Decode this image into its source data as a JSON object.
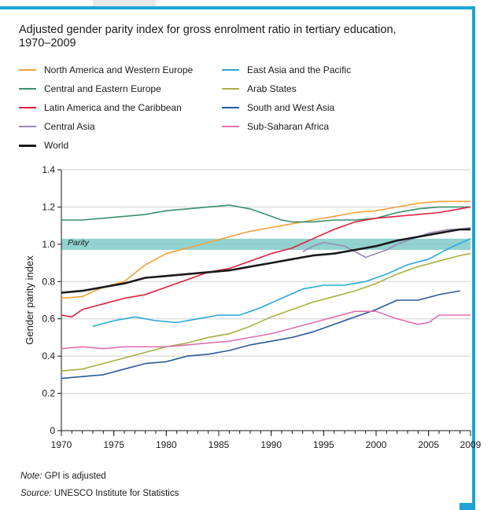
{
  "title_line1": "Adjusted gender parity index for gross enrolment ratio in tertiary education,",
  "title_line2": "1970–2009",
  "note_label": "Note:",
  "note_text": "GPI is adjusted",
  "source_label": "Source:",
  "source_text": "UNESCO Institute for Statistics",
  "chart_data": {
    "type": "line",
    "ylabel": "Gender parity index",
    "xlabel": "",
    "xlim": [
      1970,
      2009
    ],
    "ylim": [
      0,
      1.4
    ],
    "xticks": [
      "1970",
      "1975",
      "1980",
      "1985",
      "1990",
      "1995",
      "2000",
      "2005",
      "2009"
    ],
    "yticks": [
      "0",
      "0.2",
      "0.4",
      "0.6",
      "0.8",
      "1.0",
      "1.2",
      "1.4"
    ],
    "band": {
      "label": "Parity",
      "from": 0.97,
      "to": 1.03,
      "color": "#7fcbc7"
    },
    "grid": true,
    "legend_position": "top",
    "series": [
      {
        "name": "North America and Western Europe",
        "color": "#f5a03a",
        "x": [
          1970,
          1972,
          1974,
          1976,
          1978,
          1980,
          1982,
          1984,
          1986,
          1988,
          1990,
          1992,
          1994,
          1996,
          1998,
          2000,
          2002,
          2004,
          2006,
          2008,
          2009
        ],
        "y": [
          0.71,
          0.72,
          0.77,
          0.8,
          0.89,
          0.95,
          0.98,
          1.01,
          1.04,
          1.07,
          1.09,
          1.11,
          1.13,
          1.15,
          1.17,
          1.18,
          1.2,
          1.22,
          1.23,
          1.23,
          1.23
        ]
      },
      {
        "name": "Central and Eastern Europe",
        "color": "#3a8f6a",
        "x": [
          1970,
          1972,
          1974,
          1976,
          1978,
          1980,
          1982,
          1984,
          1986,
          1988,
          1990,
          1991,
          1992,
          1994,
          1996,
          1998,
          2000,
          2002,
          2004,
          2006,
          2008,
          2009
        ],
        "y": [
          1.13,
          1.13,
          1.14,
          1.15,
          1.16,
          1.18,
          1.19,
          1.2,
          1.21,
          1.19,
          1.15,
          1.13,
          1.12,
          1.12,
          1.13,
          1.13,
          1.14,
          1.17,
          1.19,
          1.2,
          1.2,
          1.2
        ]
      },
      {
        "name": "Latin America and the Caribbean",
        "color": "#e0203b",
        "x": [
          1970,
          1971,
          1972,
          1974,
          1976,
          1978,
          1980,
          1982,
          1984,
          1986,
          1988,
          1990,
          1992,
          1994,
          1996,
          1998,
          2000,
          2002,
          2004,
          2006,
          2008,
          2009
        ],
        "y": [
          0.62,
          0.61,
          0.65,
          0.68,
          0.71,
          0.73,
          0.77,
          0.81,
          0.85,
          0.87,
          0.91,
          0.95,
          0.98,
          1.03,
          1.08,
          1.12,
          1.14,
          1.15,
          1.16,
          1.17,
          1.19,
          1.2
        ]
      },
      {
        "name": "Central Asia",
        "color": "#9b8ab4",
        "x": [
          1993,
          1994,
          1995,
          1996,
          1997,
          1998,
          1999,
          2000,
          2001,
          2002,
          2003,
          2004,
          2005,
          2006,
          2007,
          2008,
          2009
        ],
        "y": [
          0.96,
          0.99,
          1.01,
          1.0,
          0.99,
          0.96,
          0.93,
          0.95,
          0.97,
          1.0,
          1.02,
          1.04,
          1.06,
          1.07,
          1.08,
          1.08,
          1.09
        ]
      },
      {
        "name": "World",
        "color": "#1a1a1a",
        "x": [
          1970,
          1972,
          1974,
          1976,
          1978,
          1980,
          1982,
          1984,
          1986,
          1988,
          1990,
          1992,
          1994,
          1996,
          1998,
          2000,
          2002,
          2004,
          2006,
          2008,
          2009
        ],
        "y": [
          0.74,
          0.75,
          0.77,
          0.79,
          0.82,
          0.83,
          0.84,
          0.85,
          0.86,
          0.88,
          0.9,
          0.92,
          0.94,
          0.95,
          0.97,
          0.99,
          1.02,
          1.04,
          1.06,
          1.08,
          1.08
        ]
      },
      {
        "name": "East Asia and the Pacific",
        "color": "#2aa8d8",
        "x": [
          1973,
          1975,
          1977,
          1979,
          1981,
          1983,
          1985,
          1987,
          1989,
          1991,
          1993,
          1995,
          1997,
          1999,
          2001,
          2003,
          2005,
          2007,
          2009
        ],
        "y": [
          0.56,
          0.59,
          0.61,
          0.59,
          0.58,
          0.6,
          0.62,
          0.62,
          0.66,
          0.71,
          0.76,
          0.78,
          0.78,
          0.8,
          0.84,
          0.89,
          0.92,
          0.98,
          1.03
        ]
      },
      {
        "name": "Arab States",
        "color": "#a8b040",
        "x": [
          1970,
          1972,
          1974,
          1976,
          1978,
          1980,
          1982,
          1984,
          1986,
          1988,
          1990,
          1992,
          1994,
          1996,
          1998,
          2000,
          2002,
          2004,
          2006,
          2008,
          2009
        ],
        "y": [
          0.32,
          0.33,
          0.36,
          0.39,
          0.42,
          0.45,
          0.47,
          0.5,
          0.52,
          0.56,
          0.61,
          0.65,
          0.69,
          0.72,
          0.75,
          0.79,
          0.84,
          0.88,
          0.91,
          0.94,
          0.95
        ]
      },
      {
        "name": "South and West Asia",
        "color": "#2a5a9a",
        "x": [
          1970,
          1972,
          1974,
          1976,
          1978,
          1980,
          1982,
          1984,
          1986,
          1988,
          1990,
          1992,
          1994,
          1996,
          1998,
          2000,
          2002,
          2004,
          2006,
          2008
        ],
        "y": [
          0.28,
          0.29,
          0.3,
          0.33,
          0.36,
          0.37,
          0.4,
          0.41,
          0.43,
          0.46,
          0.48,
          0.5,
          0.53,
          0.57,
          0.61,
          0.65,
          0.7,
          0.7,
          0.73,
          0.75
        ]
      },
      {
        "name": "Sub-Saharan Africa",
        "color": "#e070b0",
        "x": [
          1970,
          1972,
          1974,
          1976,
          1978,
          1980,
          1982,
          1984,
          1986,
          1988,
          1990,
          1992,
          1994,
          1996,
          1998,
          2000,
          2002,
          2004,
          2005,
          2006,
          2008,
          2009
        ],
        "y": [
          0.44,
          0.45,
          0.44,
          0.45,
          0.45,
          0.45,
          0.46,
          0.47,
          0.48,
          0.5,
          0.52,
          0.55,
          0.58,
          0.61,
          0.64,
          0.64,
          0.6,
          0.57,
          0.58,
          0.62,
          0.62,
          0.62
        ]
      }
    ]
  }
}
